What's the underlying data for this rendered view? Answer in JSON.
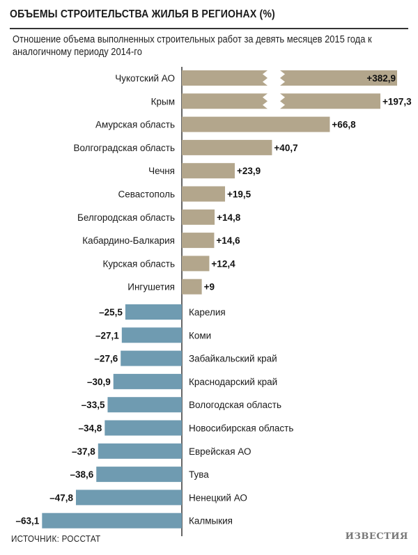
{
  "title": "ОБЪЕМЫ СТРОИТЕЛЬСТВА ЖИЛЬЯ В РЕГИОНАХ (%)",
  "subtitle": "Отношение объема выполненных строительных работ за девять месяцев 2015 года к аналогичному периоду 2014-го",
  "source": "ИСТОЧНИК: РОССТАТ",
  "logo": "ИЗВЕСТИЯ",
  "chart_data": {
    "type": "bar",
    "orientation": "horizontal",
    "title": "ОБЪЕМЫ СТРОИТЕЛЬСТВА ЖИЛЬЯ В РЕГИОНАХ (%)",
    "unit": "%",
    "colors": {
      "positive": "#b3a68c",
      "negative": "#6f9bb1",
      "axis": "#333333"
    },
    "axis_break_above": 100,
    "positive": [
      {
        "label": "Чукотский АО",
        "value": 382.9,
        "text": "+382,9",
        "broken": true
      },
      {
        "label": "Крым",
        "value": 197.3,
        "text": "+197,3",
        "broken": true
      },
      {
        "label": "Амурская область",
        "value": 66.8,
        "text": "+66,8",
        "broken": false
      },
      {
        "label": "Волгоградская область",
        "value": 40.7,
        "text": "+40,7",
        "broken": false
      },
      {
        "label": "Чечня",
        "value": 23.9,
        "text": "+23,9",
        "broken": false
      },
      {
        "label": "Севастополь",
        "value": 19.5,
        "text": "+19,5",
        "broken": false
      },
      {
        "label": "Белгородская область",
        "value": 14.8,
        "text": "+14,8",
        "broken": false
      },
      {
        "label": "Кабардино-Балкария",
        "value": 14.6,
        "text": "+14,6",
        "broken": false
      },
      {
        "label": "Курская область",
        "value": 12.4,
        "text": "+12,4",
        "broken": false
      },
      {
        "label": "Ингушетия",
        "value": 9,
        "text": "+9",
        "broken": false
      }
    ],
    "negative": [
      {
        "label": "Карелия",
        "value": -25.5,
        "text": "–25,5"
      },
      {
        "label": "Коми",
        "value": -27.1,
        "text": "–27,1"
      },
      {
        "label": "Забайкальский край",
        "value": -27.6,
        "text": "–27,6"
      },
      {
        "label": "Краснодарский край",
        "value": -30.9,
        "text": "–30,9"
      },
      {
        "label": "Вологодская область",
        "value": -33.5,
        "text": "–33,5"
      },
      {
        "label": "Новосибирская область",
        "value": -34.8,
        "text": "–34,8"
      },
      {
        "label": "Еврейская АО",
        "value": -37.8,
        "text": "–37,8"
      },
      {
        "label": "Тува",
        "value": -38.6,
        "text": "–38,6"
      },
      {
        "label": "Ненецкий АО",
        "value": -47.8,
        "text": "–47,8"
      },
      {
        "label": "Калмыкия",
        "value": -63.1,
        "text": "–63,1"
      }
    ]
  }
}
